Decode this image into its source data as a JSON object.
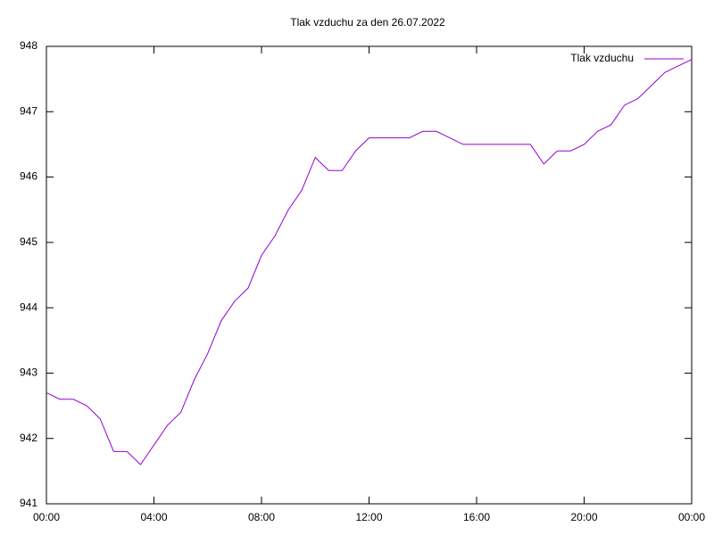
{
  "chart_data": {
    "type": "line",
    "title": "Tlak vzduchu za den 26.07.2022",
    "x": [
      0,
      30,
      60,
      90,
      120,
      150,
      180,
      210,
      240,
      270,
      300,
      330,
      360,
      390,
      420,
      450,
      480,
      510,
      540,
      570,
      600,
      630,
      660,
      690,
      720,
      750,
      780,
      810,
      840,
      870,
      900,
      930,
      960,
      990,
      1020,
      1050,
      1080,
      1110,
      1140,
      1170,
      1200,
      1230,
      1260,
      1290,
      1320,
      1350,
      1380,
      1410,
      1440
    ],
    "series": [
      {
        "name": "Tlak vzduchu",
        "color": "#9400d3",
        "values": [
          942.7,
          942.6,
          942.6,
          942.5,
          942.3,
          941.8,
          941.8,
          941.6,
          941.9,
          942.2,
          942.4,
          942.9,
          943.3,
          943.8,
          944.1,
          944.3,
          944.8,
          945.1,
          945.5,
          945.8,
          946.3,
          946.1,
          946.1,
          946.4,
          946.6,
          946.6,
          946.6,
          946.6,
          946.7,
          946.7,
          946.6,
          946.5,
          946.5,
          946.5,
          946.5,
          946.5,
          946.5,
          946.2,
          946.4,
          946.4,
          946.5,
          946.7,
          946.8,
          947.1,
          947.2,
          947.4,
          947.6,
          947.7,
          947.8
        ]
      }
    ],
    "xlim": [
      0,
      1440
    ],
    "xticks": [
      {
        "value": 0,
        "label": "00:00"
      },
      {
        "value": 240,
        "label": "04:00"
      },
      {
        "value": 480,
        "label": "08:00"
      },
      {
        "value": 720,
        "label": "12:00"
      },
      {
        "value": 960,
        "label": "16:00"
      },
      {
        "value": 1200,
        "label": "20:00"
      },
      {
        "value": 1440,
        "label": "00:00"
      }
    ],
    "ylim": [
      941,
      948
    ],
    "yticks": [
      941,
      942,
      943,
      944,
      945,
      946,
      947,
      948
    ],
    "grid": false,
    "legend": "top-right"
  }
}
